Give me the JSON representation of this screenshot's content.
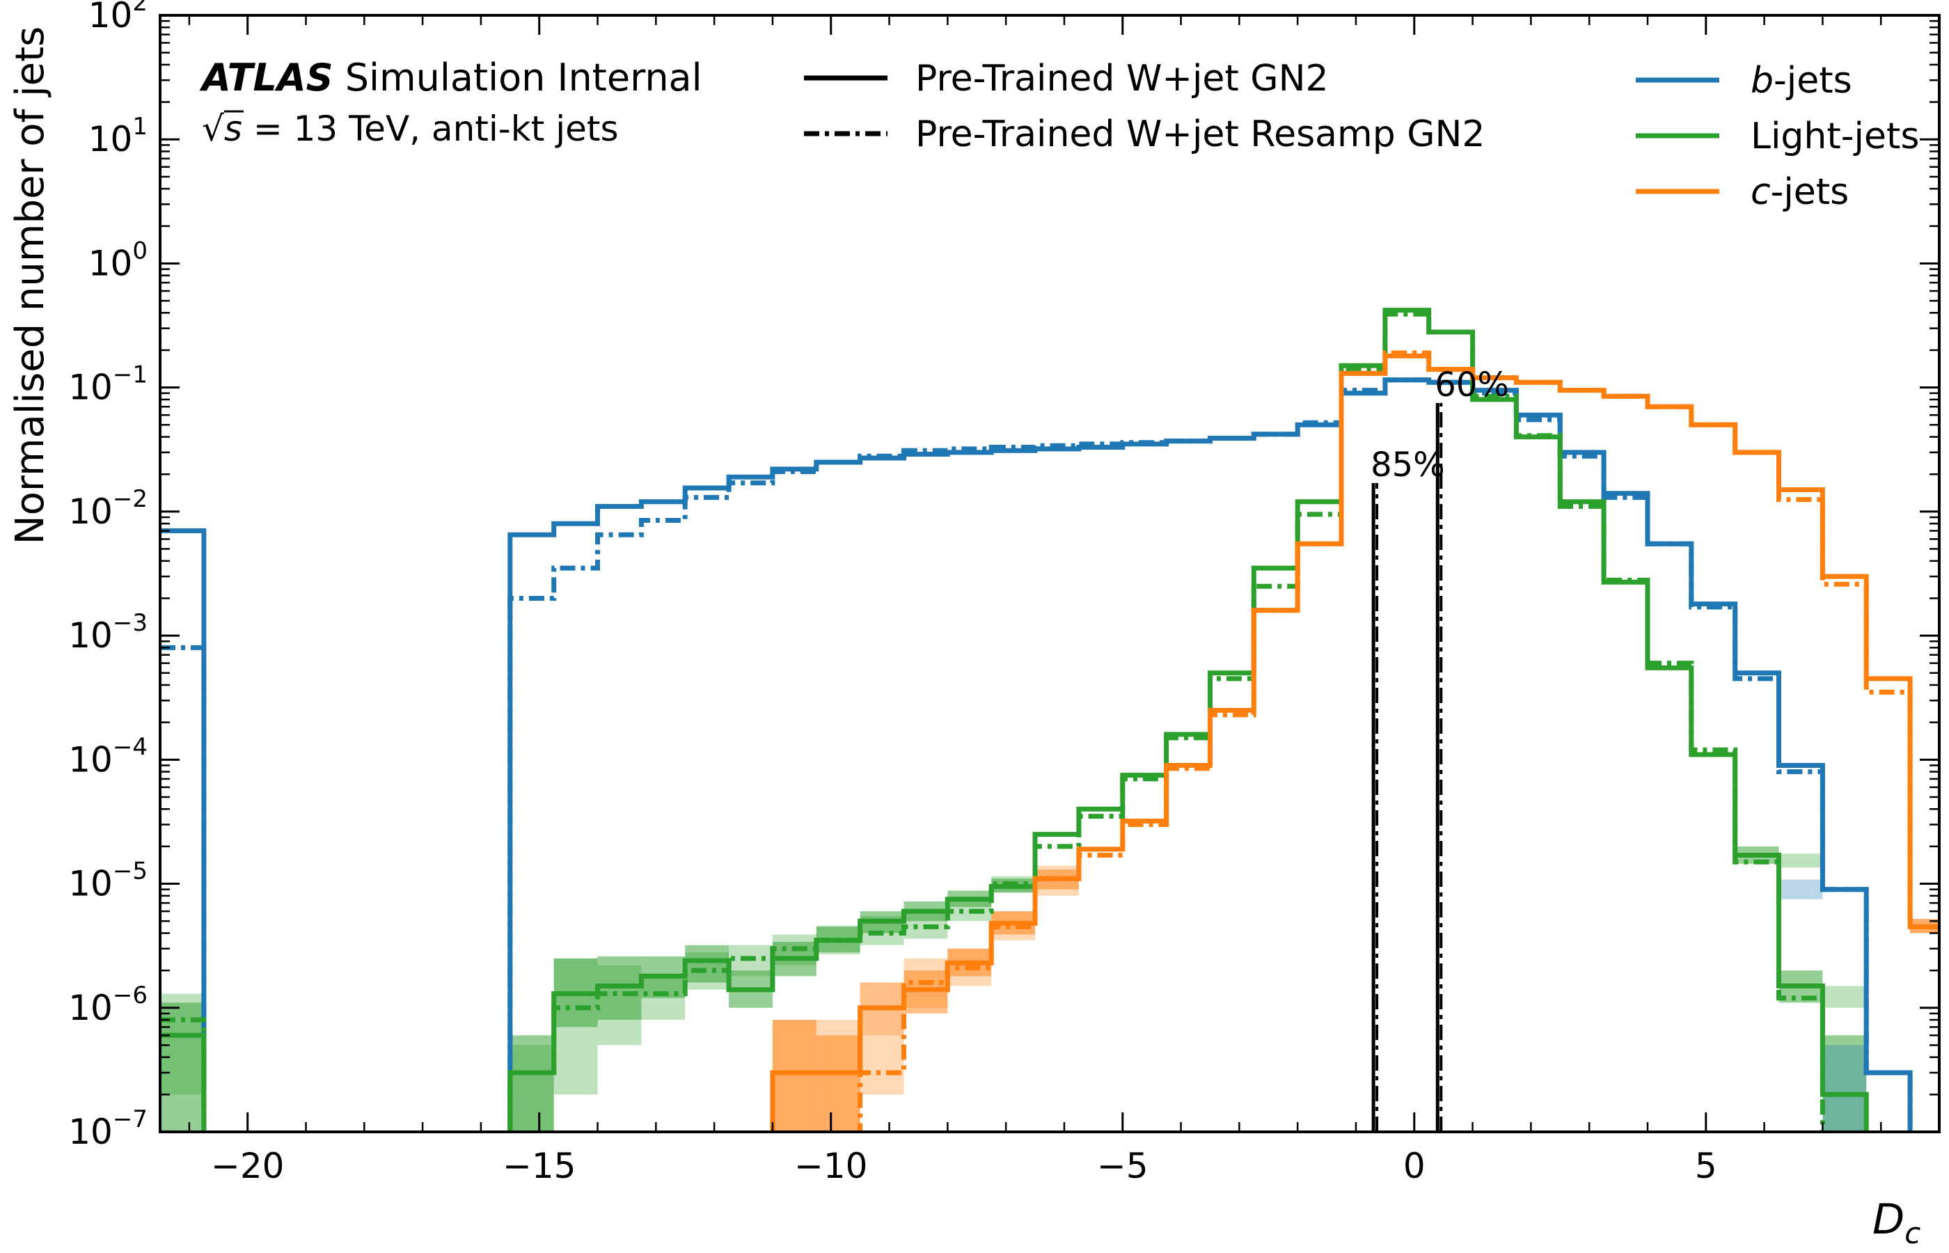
{
  "chart_data": {
    "type": "step-histogram",
    "x_scale": "linear",
    "y_scale": "log",
    "xlim": [
      -21.5,
      9.0
    ],
    "ylim": [
      1e-07,
      100
    ],
    "xticks": [
      -20,
      -15,
      -10,
      -5,
      0,
      5
    ],
    "xtick_labels": [
      "−20",
      "−15",
      "−10",
      "−5",
      "0",
      "5"
    ],
    "yticks": [
      -7,
      -6,
      -5,
      -4,
      -3,
      -2,
      -1,
      0,
      1,
      2
    ],
    "xlabel": "D_c",
    "xlabel_main": "D",
    "xlabel_sub": "c",
    "ylabel": "Normalised number of jets",
    "annotation": {
      "bold": "ATLAS",
      "rest": " Simulation Internal",
      "sqrt": "√",
      "s": "s",
      "energy": " = 13 TeV, anti-kt jets"
    },
    "style_legend": [
      {
        "label": "Pre-Trained W+jet GN2",
        "dash": "solid"
      },
      {
        "label": "Pre-Trained W+jet Resamp GN2",
        "dash": "dashdot"
      }
    ],
    "flavour_legend": [
      {
        "italic": "b",
        "rest": "-jets",
        "color": "#1f77b4"
      },
      {
        "italic": "",
        "rest": "Light-jets",
        "color": "#2ca02c"
      },
      {
        "italic": "c",
        "rest": "-jets",
        "color": "#ff7f0e"
      }
    ],
    "wp_lines": [
      {
        "label": "85%",
        "x": -0.7,
        "y": 0.017
      },
      {
        "label": "60%",
        "x": 0.4,
        "y": 0.075
      }
    ],
    "bin_edges": [
      -21.5,
      -20.75,
      -20.0,
      -19.25,
      -18.5,
      -17.75,
      -17.0,
      -16.25,
      -15.5,
      -14.75,
      -14.0,
      -13.25,
      -12.5,
      -11.75,
      -11.0,
      -10.25,
      -9.5,
      -8.75,
      -8.0,
      -7.25,
      -6.5,
      -5.75,
      -5.0,
      -4.25,
      -3.5,
      -2.75,
      -2.0,
      -1.25,
      -0.5,
      0.25,
      1.0,
      1.75,
      2.5,
      3.25,
      4.0,
      4.75,
      5.5,
      6.25,
      7.0,
      7.75,
      8.5,
      9.25
    ],
    "series": [
      {
        "name": "b-jets",
        "flavour": "b",
        "style": "solid",
        "color": "#1f77b4",
        "values": [
          0.007,
          0,
          0,
          0,
          0,
          0,
          0,
          0,
          0.0065,
          0.008,
          0.011,
          0.012,
          0.0155,
          0.019,
          0.022,
          0.025,
          0.027,
          0.029,
          0.03,
          0.031,
          0.032,
          0.033,
          0.035,
          0.037,
          0.039,
          0.042,
          0.05,
          0.09,
          0.115,
          0.11,
          0.095,
          0.06,
          0.03,
          0.014,
          0.0055,
          0.0018,
          0.0005,
          9e-05,
          9e-06,
          3e-07,
          0
        ]
      },
      {
        "name": "b-jets",
        "flavour": "b",
        "style": "dashdot",
        "color": "#1f77b4",
        "values": [
          0.0008,
          0,
          0,
          0,
          0,
          0,
          0,
          0,
          0.002,
          0.0035,
          0.0065,
          0.0085,
          0.013,
          0.017,
          0.021,
          0.025,
          0.028,
          0.031,
          0.032,
          0.033,
          0.034,
          0.035,
          0.036,
          0.037,
          0.039,
          0.042,
          0.052,
          0.095,
          0.115,
          0.11,
          0.09,
          0.055,
          0.028,
          0.013,
          0.0055,
          0.0017,
          0.00045,
          8e-05,
          9e-06,
          3e-07,
          0
        ]
      },
      {
        "name": "Light-jets",
        "flavour": "light",
        "style": "solid",
        "color": "#2ca02c",
        "values": [
          6e-07,
          0,
          0,
          0,
          0,
          0,
          0,
          0,
          3e-07,
          1.3e-06,
          1.5e-06,
          1.8e-06,
          2.4e-06,
          1.4e-06,
          2.5e-06,
          3.5e-06,
          5e-06,
          6e-06,
          7.5e-06,
          9.5e-06,
          2.5e-05,
          4e-05,
          7.5e-05,
          0.00016,
          0.0005,
          0.0035,
          0.012,
          0.15,
          0.42,
          0.28,
          0.08,
          0.04,
          0.012,
          0.0027,
          0.00055,
          0.00011,
          1.7e-05,
          1.5e-06,
          2e-07,
          0,
          0
        ]
      },
      {
        "name": "Light-jets",
        "flavour": "light",
        "style": "dashdot",
        "color": "#2ca02c",
        "values": [
          8e-07,
          0,
          0,
          0,
          0,
          0,
          0,
          0,
          3e-07,
          1e-06,
          1.3e-06,
          1.3e-06,
          2e-06,
          2.5e-06,
          3e-06,
          3.5e-06,
          4e-06,
          4.5e-06,
          6e-06,
          1e-05,
          2e-05,
          3.5e-05,
          7e-05,
          0.00015,
          0.00045,
          0.0025,
          0.0095,
          0.14,
          0.39,
          0.28,
          0.085,
          0.041,
          0.011,
          0.0028,
          0.0006,
          0.00012,
          1.5e-05,
          1.2e-06,
          0,
          0,
          0
        ]
      },
      {
        "name": "c-jets",
        "flavour": "c",
        "style": "solid",
        "color": "#ff7f0e",
        "values": [
          0,
          0,
          0,
          0,
          0,
          0,
          0,
          0,
          0,
          0,
          0,
          0,
          0,
          0,
          3e-07,
          3e-07,
          1e-06,
          1.4e-06,
          2.3e-06,
          4.8e-06,
          1.1e-05,
          1.9e-05,
          3.2e-05,
          9e-05,
          0.00025,
          0.0016,
          0.0055,
          0.13,
          0.18,
          0.14,
          0.12,
          0.11,
          0.095,
          0.085,
          0.07,
          0.05,
          0.03,
          0.015,
          0.003,
          0.00045,
          4.5e-06
        ]
      },
      {
        "name": "c-jets",
        "flavour": "c",
        "style": "dashdot",
        "color": "#ff7f0e",
        "values": [
          0,
          0,
          0,
          0,
          0,
          0,
          0,
          0,
          0,
          0,
          0,
          0,
          0,
          0,
          0,
          0,
          3e-07,
          1.6e-06,
          2.1e-06,
          4.5e-06,
          1.1e-05,
          1.7e-05,
          3e-05,
          8.5e-05,
          0.00023,
          0.0016,
          0.0055,
          0.13,
          0.19,
          0.14,
          0.12,
          0.11,
          0.095,
          0.085,
          0.07,
          0.05,
          0.03,
          0.0125,
          0.0026,
          0.00035,
          4.5e-06
        ]
      }
    ],
    "uncertainty_bands": [
      {
        "color": "#2ca02c",
        "opacity": 0.5,
        "bins": [
          [
            0,
            1e-07,
            1.1e-06
          ],
          [
            8,
            1e-07,
            6e-07
          ],
          [
            9,
            7e-07,
            2.5e-06
          ],
          [
            10,
            8e-07,
            2.6e-06
          ],
          [
            11,
            1.2e-06,
            2.6e-06
          ],
          [
            12,
            1.6e-06,
            3.2e-06
          ],
          [
            13,
            1e-06,
            2e-06
          ],
          [
            14,
            1.8e-06,
            3.4e-06
          ],
          [
            15,
            2.8e-06,
            4.5e-06
          ],
          [
            16,
            4e-06,
            6e-06
          ],
          [
            17,
            5e-06,
            7.2e-06
          ],
          [
            18,
            6.5e-06,
            8.8e-06
          ],
          [
            19,
            8.5e-06,
            1.1e-05
          ],
          [
            36,
            1.45e-05,
            2e-05
          ],
          [
            37,
            1.1e-06,
            2e-06
          ],
          [
            38,
            1e-07,
            6e-07
          ]
        ]
      },
      {
        "color": "#2ca02c",
        "opacity": 0.3,
        "bins": [
          [
            0,
            2e-07,
            1.3e-06
          ],
          [
            8,
            1e-07,
            5e-07
          ],
          [
            9,
            2e-07,
            2.5e-06
          ],
          [
            10,
            5e-07,
            2.2e-06
          ],
          [
            11,
            8e-07,
            1.8e-06
          ],
          [
            12,
            1.4e-06,
            2.8e-06
          ],
          [
            13,
            1.8e-06,
            3.2e-06
          ],
          [
            14,
            2.2e-06,
            3.9e-06
          ],
          [
            15,
            2.7e-06,
            4.6e-06
          ],
          [
            16,
            3.2e-06,
            5.5e-06
          ],
          [
            17,
            3.6e-06,
            5.8e-06
          ],
          [
            18,
            5e-06,
            7.5e-06
          ],
          [
            19,
            8.5e-06,
            1.15e-05
          ],
          [
            37,
            1.35e-05,
            1.75e-05
          ],
          [
            38,
            1e-06,
            1.5e-06
          ]
        ]
      },
      {
        "color": "#ff7f0e",
        "opacity": 0.5,
        "bins": [
          [
            14,
            1e-07,
            8e-07
          ],
          [
            15,
            1e-07,
            6e-07
          ],
          [
            16,
            6e-07,
            1.6e-06
          ],
          [
            17,
            9e-07,
            2e-06
          ],
          [
            18,
            1.8e-06,
            3e-06
          ],
          [
            19,
            3.9e-06,
            6e-06
          ],
          [
            20,
            9e-06,
            1.3e-05
          ],
          [
            40,
            4e-06,
            5.2e-06
          ]
        ]
      },
      {
        "color": "#ff7f0e",
        "opacity": 0.3,
        "bins": [
          [
            14,
            1e-07,
            8e-07
          ],
          [
            15,
            1e-07,
            8e-07
          ],
          [
            16,
            2e-07,
            6e-07
          ],
          [
            17,
            1e-06,
            2.5e-06
          ],
          [
            18,
            1.5e-06,
            3e-06
          ],
          [
            19,
            3.5e-06,
            6e-06
          ],
          [
            20,
            8e-06,
            1.4e-05
          ],
          [
            40,
            4e-06,
            5.2e-06
          ]
        ]
      },
      {
        "color": "#1f77b4",
        "opacity": 0.3,
        "bins": [
          [
            37,
            7.5e-06,
            1.08e-05
          ],
          [
            38,
            1e-07,
            5e-07
          ]
        ]
      }
    ]
  }
}
